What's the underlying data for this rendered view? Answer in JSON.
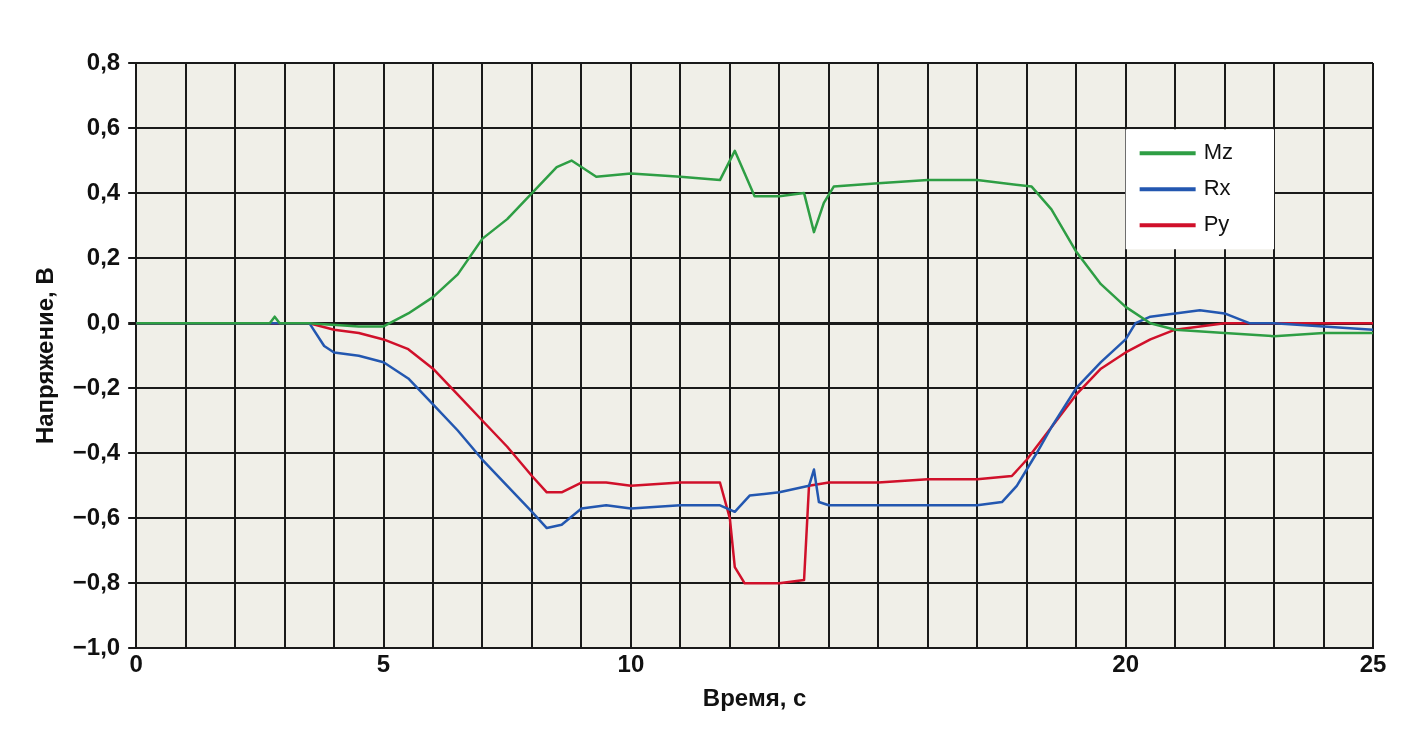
{
  "chart_data": {
    "type": "line",
    "xlabel": "Время, с",
    "ylabel": "Напряжение, В",
    "xlim": [
      0,
      25
    ],
    "ylim": [
      -1.0,
      0.8
    ],
    "xticks": [
      0,
      {
        "value": 1,
        "label": null
      },
      {
        "value": 2,
        "label": null
      },
      {
        "value": 3,
        "label": null
      },
      {
        "value": 4,
        "label": null
      },
      5,
      {
        "value": 6,
        "label": null
      },
      {
        "value": 7,
        "label": null
      },
      {
        "value": 8,
        "label": null
      },
      {
        "value": 9,
        "label": null
      },
      10,
      {
        "value": 11,
        "label": null
      },
      {
        "value": 12,
        "label": null
      },
      {
        "value": 13,
        "label": null
      },
      {
        "value": 14,
        "label": null
      },
      {
        "value": 15,
        "label": null
      },
      {
        "value": 16,
        "label": null
      },
      {
        "value": 17,
        "label": null
      },
      {
        "value": 18,
        "label": null
      },
      {
        "value": 19,
        "label": null
      },
      20,
      {
        "value": 21,
        "label": null
      },
      {
        "value": 22,
        "label": null
      },
      {
        "value": 23,
        "label": null
      },
      {
        "value": 24,
        "label": null
      },
      25
    ],
    "yticks": [
      {
        "value": -1.0,
        "label": "−1,0"
      },
      {
        "value": -0.8,
        "label": "−0,8"
      },
      {
        "value": -0.6,
        "label": "−0,6"
      },
      {
        "value": -0.4,
        "label": "−0,4"
      },
      {
        "value": -0.2,
        "label": "−0,2"
      },
      {
        "value": 0,
        "label": "0,0"
      },
      {
        "value": 0.2,
        "label": "0,2"
      },
      {
        "value": 0.4,
        "label": "0,4"
      },
      {
        "value": 0.6,
        "label": "0,6"
      },
      {
        "value": 0.8,
        "label": "0,8"
      }
    ],
    "grid": true,
    "legend": "top right",
    "marker": "none",
    "line_style": "solid",
    "series": [
      {
        "name": "Mz",
        "color": "#2e9e44",
        "x": [
          0,
          2.7,
          2.8,
          2.9,
          3.5,
          4.5,
          5,
          5.5,
          6,
          6.5,
          7,
          7.5,
          8,
          8.5,
          8.8,
          9,
          9.3,
          10,
          11,
          11.8,
          12.1,
          12.3,
          12.5,
          13,
          13.5,
          13.7,
          13.9,
          14.1,
          15,
          16,
          17,
          18.1,
          18.5,
          19,
          19.5,
          20,
          20.5,
          21,
          22,
          23,
          24,
          25
        ],
        "values": [
          0,
          0,
          0.02,
          0,
          0,
          -0.01,
          -0.01,
          0.03,
          0.08,
          0.15,
          0.26,
          0.32,
          0.4,
          0.48,
          0.5,
          0.48,
          0.45,
          0.46,
          0.45,
          0.44,
          0.53,
          0.46,
          0.39,
          0.39,
          0.4,
          0.28,
          0.37,
          0.42,
          0.43,
          0.44,
          0.44,
          0.42,
          0.35,
          0.22,
          0.12,
          0.05,
          0,
          -0.02,
          -0.03,
          -0.04,
          -0.03,
          -0.03
        ]
      },
      {
        "name": "Rx",
        "color": "#2357b0",
        "x": [
          0,
          3.5,
          3.8,
          4,
          4.5,
          5,
          5.5,
          6,
          6.5,
          7,
          7.5,
          8,
          8.3,
          8.6,
          9,
          9.5,
          10,
          11,
          11.8,
          12.1,
          12.4,
          13,
          13.6,
          13.7,
          13.8,
          14,
          15,
          16,
          17,
          17.5,
          17.8,
          18.2,
          18.5,
          19,
          19.5,
          20,
          20.2,
          20.5,
          21,
          21.5,
          22,
          22.5,
          23,
          24,
          25
        ],
        "values": [
          0,
          0,
          -0.07,
          -0.09,
          -0.1,
          -0.12,
          -0.17,
          -0.25,
          -0.33,
          -0.42,
          -0.5,
          -0.58,
          -0.63,
          -0.62,
          -0.57,
          -0.56,
          -0.57,
          -0.56,
          -0.56,
          -0.58,
          -0.53,
          -0.52,
          -0.5,
          -0.45,
          -0.55,
          -0.56,
          -0.56,
          -0.56,
          -0.56,
          -0.55,
          -0.5,
          -0.4,
          -0.32,
          -0.2,
          -0.12,
          -0.05,
          0,
          0.02,
          0.03,
          0.04,
          0.03,
          0,
          0,
          -0.01,
          -0.02
        ]
      },
      {
        "name": "Py",
        "color": "#d0102a",
        "x": [
          0,
          3.5,
          4,
          4.5,
          5,
          5.5,
          6,
          6.5,
          7,
          7.5,
          8,
          8.3,
          8.6,
          9,
          9.5,
          10,
          11,
          11.8,
          12,
          12.1,
          12.3,
          13,
          13.5,
          13.6,
          14,
          15,
          16,
          17,
          17.7,
          18,
          18.5,
          19,
          19.5,
          20,
          20.5,
          21,
          22,
          23,
          25
        ],
        "values": [
          0,
          0,
          -0.02,
          -0.03,
          -0.05,
          -0.08,
          -0.14,
          -0.22,
          -0.3,
          -0.38,
          -0.47,
          -0.52,
          -0.52,
          -0.49,
          -0.49,
          -0.5,
          -0.49,
          -0.49,
          -0.6,
          -0.75,
          -0.8,
          -0.8,
          -0.79,
          -0.5,
          -0.49,
          -0.49,
          -0.48,
          -0.48,
          -0.47,
          -0.42,
          -0.32,
          -0.22,
          -0.14,
          -0.09,
          -0.05,
          -0.02,
          0,
          0,
          0
        ]
      }
    ]
  }
}
